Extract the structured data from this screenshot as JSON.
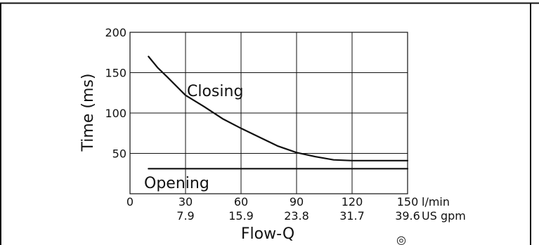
{
  "chart_data": {
    "type": "line",
    "title": "",
    "xlabel": "Flow-Q",
    "ylabel": "Time (ms)",
    "xlim": [
      0,
      150
    ],
    "ylim": [
      0,
      200
    ],
    "grid": true,
    "x_ticks": [
      "0",
      "30",
      "60",
      "90",
      "120",
      "150"
    ],
    "x_ticks_secondary": [
      "7.9",
      "15.9",
      "23.8",
      "31.7",
      "39.6"
    ],
    "x_unit_primary": "l/min",
    "x_unit_secondary": "US gpm",
    "y_ticks": [
      "50",
      "100",
      "150",
      "200"
    ],
    "series": [
      {
        "name": "Closing",
        "x": [
          10,
          15,
          20,
          30,
          40,
          50,
          60,
          70,
          80,
          90,
          100,
          110,
          120,
          130,
          140,
          150
        ],
        "y": [
          170,
          156,
          145,
          122,
          108,
          93,
          81,
          70,
          59,
          51,
          46,
          42,
          41,
          41,
          41,
          41
        ]
      },
      {
        "name": "Opening",
        "x": [
          10,
          150
        ],
        "y": [
          31,
          31
        ]
      }
    ],
    "symbol": "◎"
  }
}
